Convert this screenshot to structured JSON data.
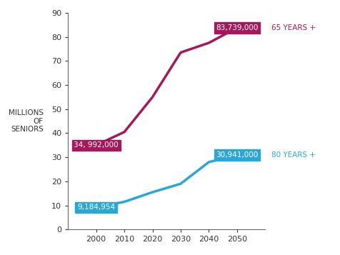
{
  "chart_data": {
    "type": "line",
    "y_label": "MILLIONS\nOF\nSENIORS",
    "x": [
      2000,
      2010,
      2020,
      2030,
      2040,
      2050
    ],
    "series": [
      {
        "name": "65 YEARS +",
        "color": "#a3195b",
        "values": [
          34.992,
          40.5,
          55.0,
          73.5,
          77.5,
          83.739
        ],
        "value_labels": [
          "34, 992,000",
          null,
          null,
          null,
          null,
          "83,739,000"
        ]
      },
      {
        "name": "80 YEARS +",
        "color": "#2aa7d6",
        "values": [
          9.184954,
          11.5,
          15.5,
          19.0,
          28.0,
          30.941
        ],
        "value_labels": [
          "9,184,954",
          null,
          null,
          null,
          null,
          "30,941,000"
        ]
      }
    ],
    "xlim": [
      1990,
      2060
    ],
    "xticks": [
      2000,
      2010,
      2020,
      2030,
      2040,
      2050
    ],
    "ylim": [
      0,
      90
    ],
    "yticks": [
      0,
      10,
      20,
      30,
      40,
      50,
      60,
      70,
      80,
      90
    ],
    "grid": false,
    "data_labels": true
  }
}
